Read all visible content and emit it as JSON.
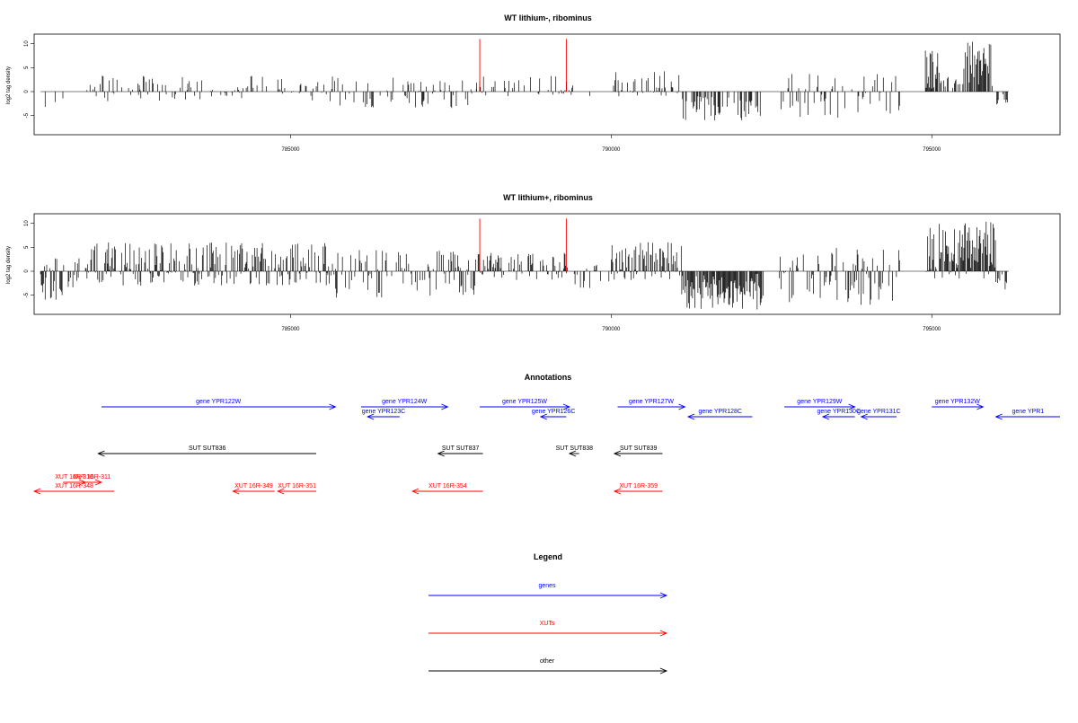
{
  "chart_data": [
    {
      "type": "bar",
      "title": "WT lithium-, ribominus",
      "xlabel": "",
      "ylabel": "log2 tag density",
      "xlim": [
        781000,
        797000
      ],
      "ylim": [
        -9,
        12
      ],
      "x_ticks": [
        "785000",
        "790000",
        "795000"
      ],
      "y_ticks": [
        "-5",
        "0",
        "5",
        "10"
      ],
      "markers_red_x": [
        787950,
        789300
      ],
      "segments": [
        {
          "from": 781100,
          "to": 781600,
          "min": -3.5,
          "max": -1,
          "density": 0.18
        },
        {
          "from": 781800,
          "to": 785700,
          "min": -2,
          "max": 3.5,
          "density": 0.35
        },
        {
          "from": 785700,
          "to": 787900,
          "min": -3.5,
          "max": 3,
          "density": 0.3
        },
        {
          "from": 787900,
          "to": 789400,
          "min": -1,
          "max": 3.5,
          "density": 0.3
        },
        {
          "from": 789400,
          "to": 790000,
          "min": -2,
          "max": 0.5,
          "density": 0.05
        },
        {
          "from": 790000,
          "to": 791100,
          "min": -1,
          "max": 4.5,
          "density": 0.4
        },
        {
          "from": 791100,
          "to": 792400,
          "min": -6,
          "max": -0.5,
          "density": 0.5
        },
        {
          "from": 792600,
          "to": 794500,
          "min": -5.5,
          "max": 4,
          "density": 0.3
        },
        {
          "from": 794900,
          "to": 795100,
          "min": 0.5,
          "max": 9,
          "density": 0.8
        },
        {
          "from": 795100,
          "to": 795500,
          "min": 0.5,
          "max": 4,
          "density": 0.3
        },
        {
          "from": 795500,
          "to": 795950,
          "min": 1,
          "max": 11,
          "density": 0.85
        },
        {
          "from": 796000,
          "to": 796200,
          "min": -3,
          "max": -0.5,
          "density": 0.4
        }
      ]
    },
    {
      "type": "bar",
      "title": "WT lithium+, ribominus",
      "xlabel": "",
      "ylabel": "log2 tag density",
      "xlim": [
        781000,
        797000
      ],
      "ylim": [
        -9,
        12
      ],
      "x_ticks": [
        "785000",
        "790000",
        "795000"
      ],
      "y_ticks": [
        "-5",
        "0",
        "5",
        "10"
      ],
      "markers_red_x": [
        787950,
        789300
      ],
      "segments": [
        {
          "from": 781100,
          "to": 781700,
          "min": -6,
          "max": 3,
          "density": 0.6
        },
        {
          "from": 781800,
          "to": 785700,
          "min": -3,
          "max": 6,
          "density": 0.7
        },
        {
          "from": 785700,
          "to": 787900,
          "min": -5.5,
          "max": 4.5,
          "density": 0.5
        },
        {
          "from": 787900,
          "to": 789400,
          "min": -2,
          "max": 4,
          "density": 0.5
        },
        {
          "from": 789400,
          "to": 790000,
          "min": -3.5,
          "max": 1.5,
          "density": 0.25
        },
        {
          "from": 790000,
          "to": 791100,
          "min": -2,
          "max": 6.5,
          "density": 0.75
        },
        {
          "from": 791100,
          "to": 792400,
          "min": -8,
          "max": -0.5,
          "density": 0.85
        },
        {
          "from": 792600,
          "to": 794500,
          "min": -7,
          "max": 5,
          "density": 0.55
        },
        {
          "from": 794900,
          "to": 796000,
          "min": -2,
          "max": 10.5,
          "density": 0.9
        },
        {
          "from": 796000,
          "to": 796200,
          "min": -5,
          "max": -0.5,
          "density": 0.5
        }
      ]
    }
  ],
  "annotations": {
    "title": "Annotations",
    "colors": {
      "gene": "#0000ff",
      "xut": "#ff0000",
      "other": "#000000"
    },
    "features": [
      {
        "label": "gene YPR122W",
        "start": 782050,
        "end": 785700,
        "strand": "+",
        "kind": "gene",
        "row": 0
      },
      {
        "label": "gene YPR123C",
        "start": 786200,
        "end": 786700,
        "strand": "-",
        "kind": "gene",
        "row": 1
      },
      {
        "label": "gene YPR124W",
        "start": 786100,
        "end": 787450,
        "strand": "+",
        "kind": "gene",
        "row": 0
      },
      {
        "label": "gene YPR125W",
        "start": 787950,
        "end": 789350,
        "strand": "+",
        "kind": "gene",
        "row": 0
      },
      {
        "label": "gene YPR126C",
        "start": 788900,
        "end": 789300,
        "strand": "-",
        "kind": "gene",
        "row": 1
      },
      {
        "label": "gene YPR127W",
        "start": 790100,
        "end": 791150,
        "strand": "+",
        "kind": "gene",
        "row": 0
      },
      {
        "label": "gene YPR128C",
        "start": 791200,
        "end": 792200,
        "strand": "-",
        "kind": "gene",
        "row": 1
      },
      {
        "label": "gene YPR129W",
        "start": 792700,
        "end": 793800,
        "strand": "+",
        "kind": "gene",
        "row": 0
      },
      {
        "label": "gene YPR130C",
        "start": 793300,
        "end": 793800,
        "strand": "-",
        "kind": "gene",
        "row": 1
      },
      {
        "label": "gene YPR131C",
        "start": 793900,
        "end": 794450,
        "strand": "-",
        "kind": "gene",
        "row": 1
      },
      {
        "label": "gene YPR132W",
        "start": 795000,
        "end": 795800,
        "strand": "+",
        "kind": "gene",
        "row": 0
      },
      {
        "label": "gene YPR1",
        "start": 796000,
        "end": 797000,
        "strand": "-",
        "kind": "gene",
        "row": 1
      },
      {
        "label": "SUT SUT836",
        "start": 782000,
        "end": 785400,
        "strand": "-",
        "kind": "other",
        "row": 2
      },
      {
        "label": "SUT SUT837",
        "start": 787300,
        "end": 788000,
        "strand": "-",
        "kind": "other",
        "row": 2
      },
      {
        "label": "SUT SUT838",
        "start": 789350,
        "end": 789500,
        "strand": "-",
        "kind": "other",
        "row": 2
      },
      {
        "label": "SUT SUT839",
        "start": 790050,
        "end": 790800,
        "strand": "-",
        "kind": "other",
        "row": 2
      },
      {
        "label": "XUT 16R-348",
        "start": 781000,
        "end": 782250,
        "strand": "-",
        "kind": "xut",
        "row": 4
      },
      {
        "label": "XUT 16R-310",
        "start": 781450,
        "end": 781800,
        "strand": "+",
        "kind": "xut",
        "row": 3
      },
      {
        "label": "XUT 16R-311",
        "start": 781750,
        "end": 782050,
        "strand": "+",
        "kind": "xut",
        "row": 3
      },
      {
        "label": "XUT 16R-349",
        "start": 784100,
        "end": 784750,
        "strand": "-",
        "kind": "xut",
        "row": 4
      },
      {
        "label": "XUT 16R-351",
        "start": 784800,
        "end": 785400,
        "strand": "-",
        "kind": "xut",
        "row": 4
      },
      {
        "label": "XUT 16R-354",
        "start": 786900,
        "end": 788000,
        "strand": "-",
        "kind": "xut",
        "row": 4
      },
      {
        "label": "XUT 16R-359",
        "start": 790050,
        "end": 790800,
        "strand": "-",
        "kind": "xut",
        "row": 4
      }
    ]
  },
  "legend": {
    "title": "Legend",
    "items": [
      {
        "label": "genes",
        "color": "#0000ff"
      },
      {
        "label": "XUTs",
        "color": "#ff0000"
      },
      {
        "label": "other",
        "color": "#000000"
      }
    ]
  }
}
